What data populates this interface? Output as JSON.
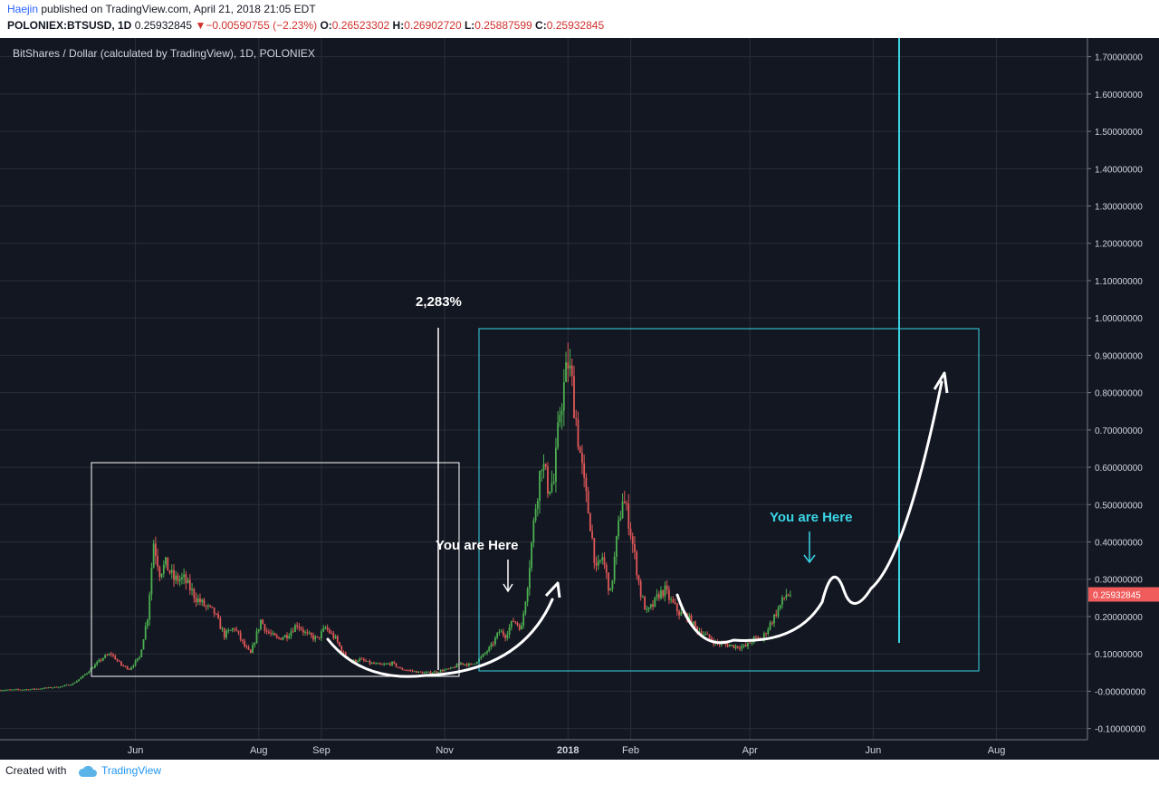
{
  "header": {
    "author": "Haejin",
    "published": "published on TradingView.com, April 21, 2018 21:05 EDT",
    "symbol": "POLONIEX:BTSUSD, 1D",
    "last": "0.25932845",
    "change_arrow": "▼",
    "change": "−0.00590755 (−2.23%)",
    "o_label": "O:",
    "o_value": "0.26523302",
    "h_label": "H:",
    "h_value": "0.26902720",
    "l_label": "L:",
    "l_value": "0.25887599",
    "c_label": "C:",
    "c_value": "0.25932845"
  },
  "colors": {
    "background": "#131722",
    "grid": "#2a2e39",
    "up": "#4caf50",
    "down": "#e05757",
    "cyan": "#3ad6e6",
    "price_label": "#f05b5b"
  },
  "chart_data": {
    "type": "candlestick",
    "title": "BitShares / Dollar (calculated by TradingView), 1D, POLONIEX",
    "ylim": [
      -0.13,
      1.75
    ],
    "y_ticks": [
      "1.70000000",
      "1.60000000",
      "1.50000000",
      "1.40000000",
      "1.30000000",
      "1.20000000",
      "1.10000000",
      "1.00000000",
      "0.90000000",
      "0.80000000",
      "0.70000000",
      "0.60000000",
      "0.50000000",
      "0.40000000",
      "0.30000000",
      "0.20000000",
      "0.10000000",
      "-0.00000000",
      "-0.10000000"
    ],
    "y_tick_values": [
      1.7,
      1.6,
      1.5,
      1.4,
      1.3,
      1.2,
      1.1,
      1.0,
      0.9,
      0.8,
      0.7,
      0.6,
      0.5,
      0.4,
      0.3,
      0.2,
      0.1,
      0.0,
      -0.1
    ],
    "x_ticks": [
      "Jun",
      "Aug",
      "Sep",
      "Nov",
      "2018",
      "Feb",
      "Apr",
      "Jun",
      "Aug"
    ],
    "x_tick_dates": [
      "2017-06-01",
      "2017-08-01",
      "2017-09-01",
      "2017-11-01",
      "2018-01-01",
      "2018-02-01",
      "2018-04-01",
      "2018-06-01",
      "2018-08-01"
    ],
    "x_range": [
      "2017-03-26",
      "2018-09-15"
    ],
    "last_price": 0.25932845,
    "last_price_label": "0.25932845",
    "anchors": [
      [
        "2017-03-26",
        0.003
      ],
      [
        "2017-04-10",
        0.005
      ],
      [
        "2017-04-25",
        0.012
      ],
      [
        "2017-05-01",
        0.02
      ],
      [
        "2017-05-06",
        0.04
      ],
      [
        "2017-05-10",
        0.06
      ],
      [
        "2017-05-16",
        0.09
      ],
      [
        "2017-05-20",
        0.1
      ],
      [
        "2017-05-25",
        0.07
      ],
      [
        "2017-05-29",
        0.06
      ],
      [
        "2017-06-03",
        0.09
      ],
      [
        "2017-06-07",
        0.2
      ],
      [
        "2017-06-10",
        0.4
      ],
      [
        "2017-06-13",
        0.32
      ],
      [
        "2017-06-16",
        0.34
      ],
      [
        "2017-06-20",
        0.3
      ],
      [
        "2017-06-25",
        0.3
      ],
      [
        "2017-07-01",
        0.25
      ],
      [
        "2017-07-05",
        0.23
      ],
      [
        "2017-07-10",
        0.21
      ],
      [
        "2017-07-15",
        0.15
      ],
      [
        "2017-07-20",
        0.17
      ],
      [
        "2017-07-25",
        0.12
      ],
      [
        "2017-07-28",
        0.1
      ],
      [
        "2017-08-02",
        0.19
      ],
      [
        "2017-08-05",
        0.16
      ],
      [
        "2017-08-10",
        0.14
      ],
      [
        "2017-08-15",
        0.15
      ],
      [
        "2017-08-20",
        0.18
      ],
      [
        "2017-08-25",
        0.15
      ],
      [
        "2017-08-30",
        0.14
      ],
      [
        "2017-09-03",
        0.17
      ],
      [
        "2017-09-08",
        0.14
      ],
      [
        "2017-09-12",
        0.1
      ],
      [
        "2017-09-16",
        0.08
      ],
      [
        "2017-09-20",
        0.085
      ],
      [
        "2017-09-25",
        0.075
      ],
      [
        "2017-10-01",
        0.07
      ],
      [
        "2017-10-06",
        0.075
      ],
      [
        "2017-10-10",
        0.06
      ],
      [
        "2017-10-15",
        0.055
      ],
      [
        "2017-10-20",
        0.05
      ],
      [
        "2017-10-25",
        0.05
      ],
      [
        "2017-10-30",
        0.055
      ],
      [
        "2017-11-04",
        0.06
      ],
      [
        "2017-11-09",
        0.075
      ],
      [
        "2017-11-14",
        0.07
      ],
      [
        "2017-11-19",
        0.09
      ],
      [
        "2017-11-24",
        0.12
      ],
      [
        "2017-11-28",
        0.16
      ],
      [
        "2017-12-01",
        0.15
      ],
      [
        "2017-12-05",
        0.19
      ],
      [
        "2017-12-09",
        0.17
      ],
      [
        "2017-12-12",
        0.29
      ],
      [
        "2017-12-16",
        0.5
      ],
      [
        "2017-12-19",
        0.62
      ],
      [
        "2017-12-22",
        0.55
      ],
      [
        "2017-12-25",
        0.56
      ],
      [
        "2017-12-28",
        0.75
      ],
      [
        "2018-01-01",
        0.88
      ],
      [
        "2018-01-03",
        0.82
      ],
      [
        "2018-01-06",
        0.68
      ],
      [
        "2018-01-09",
        0.55
      ],
      [
        "2018-01-12",
        0.45
      ],
      [
        "2018-01-15",
        0.32
      ],
      [
        "2018-01-18",
        0.36
      ],
      [
        "2018-01-22",
        0.26
      ],
      [
        "2018-01-25",
        0.4
      ],
      [
        "2018-01-28",
        0.52
      ],
      [
        "2018-01-31",
        0.46
      ],
      [
        "2018-02-03",
        0.36
      ],
      [
        "2018-02-06",
        0.26
      ],
      [
        "2018-02-09",
        0.21
      ],
      [
        "2018-02-12",
        0.23
      ],
      [
        "2018-02-15",
        0.26
      ],
      [
        "2018-02-18",
        0.27
      ],
      [
        "2018-02-21",
        0.24
      ],
      [
        "2018-02-25",
        0.21
      ],
      [
        "2018-03-01",
        0.2
      ],
      [
        "2018-03-05",
        0.17
      ],
      [
        "2018-03-10",
        0.15
      ],
      [
        "2018-03-15",
        0.13
      ],
      [
        "2018-03-20",
        0.125
      ],
      [
        "2018-03-25",
        0.12
      ],
      [
        "2018-03-30",
        0.12
      ],
      [
        "2018-04-03",
        0.14
      ],
      [
        "2018-04-07",
        0.14
      ],
      [
        "2018-04-10",
        0.17
      ],
      [
        "2018-04-13",
        0.2
      ],
      [
        "2018-04-16",
        0.23
      ],
      [
        "2018-04-19",
        0.26
      ],
      [
        "2018-04-21",
        0.259
      ]
    ]
  },
  "annotations": {
    "percent_label": "2,283%",
    "you_are_here_1": "You are Here",
    "you_are_here_2": "You are Here"
  },
  "footer": {
    "created_with": "Created with",
    "brand": "TradingView",
    "cloud_icon": "tradingview-cloud-icon"
  }
}
